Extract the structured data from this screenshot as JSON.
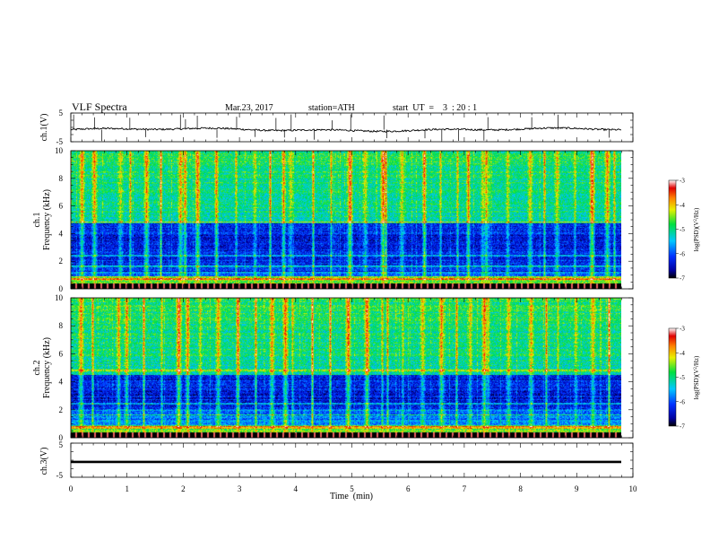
{
  "header": {
    "title": "VLF  Spectra",
    "date": "Mar.23, 2017",
    "station": "station=ATH",
    "start": "start  UT  =    3  : 20 : 1"
  },
  "chart_data": [
    {
      "type": "line",
      "panel": "ch.1 waveform",
      "ylabel": "ch.1(V)",
      "ylim": [
        -5,
        5
      ],
      "yticks": [
        "5",
        "-5"
      ],
      "xlim": [
        0,
        10
      ],
      "baseline_v": -0.8,
      "noise_v": 0.3,
      "spike_times_min": [
        0.05,
        0.42,
        0.55,
        1.05,
        1.33,
        1.95,
        2.04,
        2.25,
        2.6,
        2.95,
        3.28,
        3.65,
        3.8,
        3.92,
        4.33,
        4.65,
        4.98,
        5.57,
        5.62,
        6.3,
        6.6,
        6.9,
        7.35,
        7.42,
        8.2,
        8.67,
        9.58
      ],
      "series": [
        {
          "color": "#000000"
        }
      ]
    },
    {
      "type": "heatmap",
      "panel": "ch.1 spectrogram",
      "ylabel": "ch.1\nFrequency  (kHz)",
      "ylim": [
        0,
        10
      ],
      "yticks": [
        "0",
        "2",
        "4",
        "6",
        "8",
        "10"
      ],
      "xlim": [
        0,
        9.83
      ],
      "dark_band_khz": [
        1.2,
        4.8
      ],
      "sferic_times_min": [
        0.2,
        0.42,
        0.88,
        1.05,
        1.35,
        1.6,
        1.95,
        2.04,
        2.25,
        2.6,
        2.95,
        3.28,
        3.55,
        3.8,
        3.92,
        4.33,
        4.65,
        4.98,
        5.25,
        5.57,
        5.62,
        5.9,
        6.3,
        6.6,
        6.9,
        7.1,
        7.35,
        7.42,
        7.8,
        8.2,
        8.45,
        8.67,
        9.0,
        9.3,
        9.58,
        9.7
      ],
      "colorbar": {
        "label": "log(PSD)(V²/Hz)",
        "range": [
          -7,
          -3
        ],
        "ticks": [
          "-3",
          "-4",
          "-5",
          "-6",
          "-7"
        ]
      }
    },
    {
      "type": "heatmap",
      "panel": "ch.2 spectrogram",
      "ylabel": "ch.2\nFrequency  (kHz)",
      "ylim": [
        0,
        10
      ],
      "yticks": [
        "0",
        "2",
        "4",
        "6",
        "8",
        "10"
      ],
      "xlim": [
        0,
        9.83
      ],
      "dark_band_khz": [
        2.0,
        4.5
      ],
      "sferic_times_min": [
        0.18,
        0.38,
        0.85,
        1.0,
        1.3,
        1.62,
        1.92,
        2.08,
        2.3,
        2.62,
        2.98,
        3.3,
        3.58,
        3.82,
        3.95,
        4.3,
        4.62,
        4.95,
        5.28,
        5.55,
        5.65,
        5.92,
        6.28,
        6.62,
        6.88,
        7.12,
        7.38,
        7.45,
        7.82,
        8.22,
        8.48,
        8.7,
        9.02,
        9.32,
        9.6
      ],
      "colorbar": {
        "label": "log(PSD)(V²/Hz)",
        "range": [
          -7,
          -3
        ],
        "ticks": [
          "-3",
          "-4",
          "-5",
          "-6",
          "-7"
        ]
      }
    },
    {
      "type": "line",
      "panel": "ch.3 waveform",
      "ylabel": "ch.3(V)",
      "ylim": [
        -5,
        5
      ],
      "yticks": [
        "5",
        "-5"
      ],
      "xlim": [
        0,
        10
      ],
      "xticks": [
        "0",
        "1",
        "2",
        "3",
        "4",
        "5",
        "6",
        "7",
        "8",
        "9",
        "10"
      ],
      "xlabel": "Time  (min)",
      "baseline_v": -0.5,
      "series": [
        {
          "color": "#000000"
        }
      ]
    }
  ]
}
